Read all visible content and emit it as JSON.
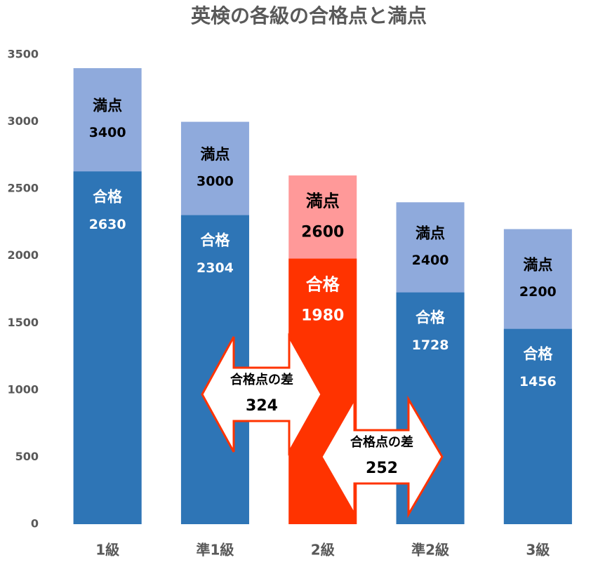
{
  "chart_data": {
    "type": "overlap_bar",
    "title": "英検の各級の合格点と満点",
    "categories": [
      "1級",
      "準1級",
      "2級",
      "準2級",
      "3級"
    ],
    "series": [
      {
        "name": "満点",
        "color": "#8faadc",
        "colors": [
          "#8faadc",
          "#8faadc",
          "#ff9999",
          "#8faadc",
          "#8faadc"
        ],
        "values": [
          3400,
          3000,
          2600,
          2400,
          2200
        ]
      },
      {
        "name": "合格",
        "color": "#2e75b6",
        "colors": [
          "#2e75b6",
          "#2e75b6",
          "#ff3300",
          "#2e75b6",
          "#2e75b6"
        ],
        "values": [
          2630,
          2304,
          1980,
          1728,
          1456
        ]
      }
    ],
    "ylim": [
      0,
      3500
    ],
    "yticks": [
      0,
      500,
      1000,
      1500,
      2000,
      2500,
      3000,
      3500
    ],
    "grid": false,
    "annotations": [
      {
        "text": "合格点の差",
        "value": 324
      },
      {
        "text": "合格点の差",
        "value": 252
      }
    ]
  }
}
